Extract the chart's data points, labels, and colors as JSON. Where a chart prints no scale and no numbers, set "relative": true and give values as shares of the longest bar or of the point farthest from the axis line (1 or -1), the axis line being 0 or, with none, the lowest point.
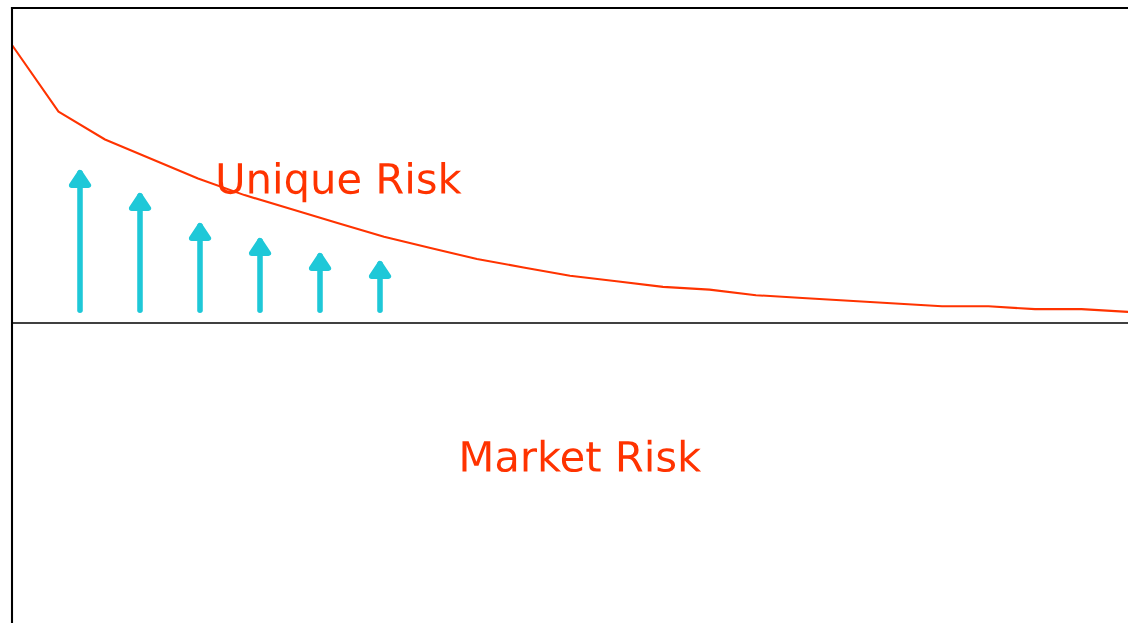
{
  "chart_data": {
    "type": "line",
    "relative": true,
    "categories": [
      null,
      null,
      null,
      null,
      null,
      null,
      null,
      null,
      null,
      null,
      null,
      null,
      null,
      null,
      null,
      null,
      null,
      null,
      null,
      null,
      null,
      null,
      null,
      null,
      null
    ],
    "series": [
      {
        "color": "#ff3300",
        "values": [
          1.0,
          0.76,
          0.66,
          0.59,
          0.52,
          0.46,
          0.41,
          0.36,
          0.31,
          0.27,
          0.23,
          0.2,
          0.17,
          0.15,
          0.13,
          0.12,
          0.1,
          0.09,
          0.08,
          0.07,
          0.06,
          0.06,
          0.05,
          0.05,
          0.04
        ]
      }
    ],
    "annotations": [
      "Unique Risk",
      "Market Risk"
    ]
  }
}
